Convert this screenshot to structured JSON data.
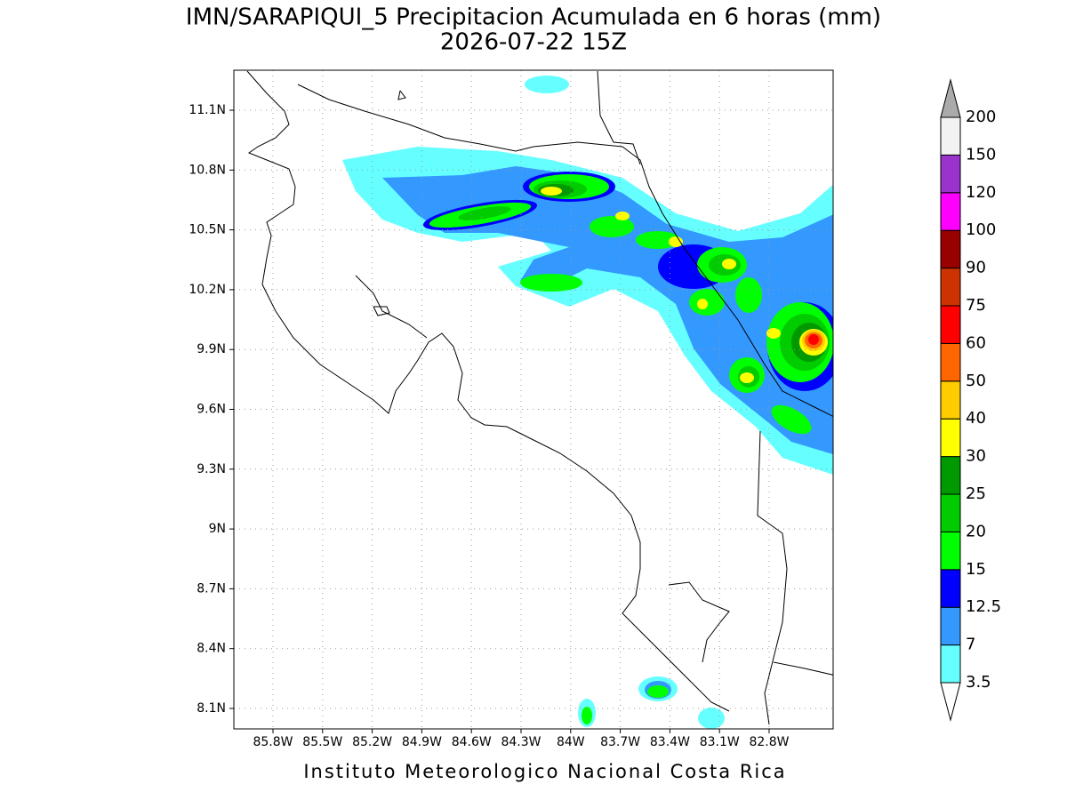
{
  "title": [
    "IMN/SARAPIQUI_5 Precipitacion Acumulada en 6 horas (mm)",
    "2026-07-22 15Z"
  ],
  "map": {
    "lat_ticks": [
      "11.1N",
      "10.8N",
      "10.5N",
      "10.2N",
      "9.9N",
      "9.6N",
      "9.3N",
      "9N",
      "8.7N",
      "8.4N",
      "8.1N"
    ],
    "lon_ticks": [
      "85.8W",
      "85.5W",
      "85.2W",
      "84.9W",
      "84.6W",
      "84.3W",
      "84W",
      "83.7W",
      "83.4W",
      "83.1W",
      "82.8W"
    ]
  },
  "colorbar": {
    "levels": [
      "3.5",
      "7",
      "12.5",
      "15",
      "20",
      "25",
      "30",
      "40",
      "50",
      "60",
      "75",
      "90",
      "100",
      "120",
      "150",
      "200"
    ],
    "colors": [
      "#66ffff",
      "#3399ff",
      "#0000ff",
      "#00ff00",
      "#00cc00",
      "#009900",
      "#ffff00",
      "#ffcc00",
      "#ff6600",
      "#ff0000",
      "#cc3300",
      "#990000",
      "#ff00ff",
      "#9933cc",
      "#f2f2f2"
    ],
    "under_color": "#ffffff",
    "over_color": "#aaaaaa"
  },
  "footer": "Instituto Meteorologico Nacional Costa Rica"
}
